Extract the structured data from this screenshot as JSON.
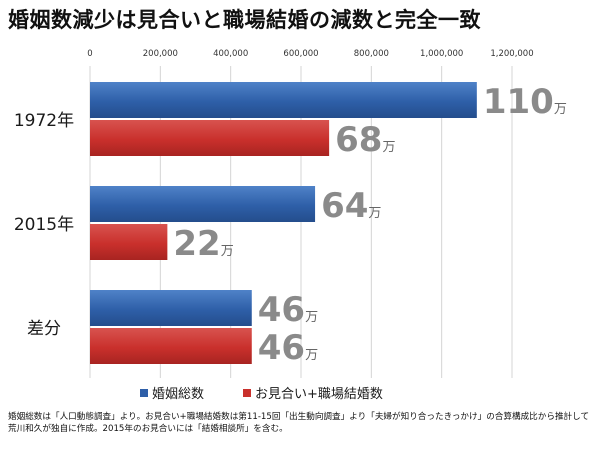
{
  "title": "婚姻数減少は見合いと職場結婚の減数と完全一致",
  "note": "婚姻総数は「人口動態調査」より。お見合い+職場結婚数は第11-15回「出生動向調査」より「夫婦が知り合ったきっかけ」の合算構成比から推計して荒川和久が独自に作成。2015年のお見合いには「結婚相談所」を含む。",
  "colors": {
    "blue": "#2e5fa8",
    "red": "#c9302c",
    "value_label": "#8a8a8a",
    "grid": "#d4d4d4"
  },
  "chart_data": {
    "type": "bar",
    "orientation": "horizontal",
    "categories": [
      "1972年",
      "2015年",
      "差分"
    ],
    "series": [
      {
        "name": "婚姻総数",
        "color": "#2e5fa8",
        "values": [
          1100000,
          640000,
          460000
        ],
        "labels": [
          "110",
          "64",
          "46"
        ]
      },
      {
        "name": "お見合い+職場結婚数",
        "color": "#c9302c",
        "values": [
          680000,
          220000,
          460000
        ],
        "labels": [
          "68",
          "22",
          "46"
        ]
      }
    ],
    "value_unit": "万",
    "x_ticks": [
      "0",
      "200,000",
      "400,000",
      "600,000",
      "800,000",
      "1,000,000",
      "1,200,000"
    ],
    "xlim": [
      0,
      1200000
    ],
    "grid": true,
    "legend_position": "bottom"
  }
}
